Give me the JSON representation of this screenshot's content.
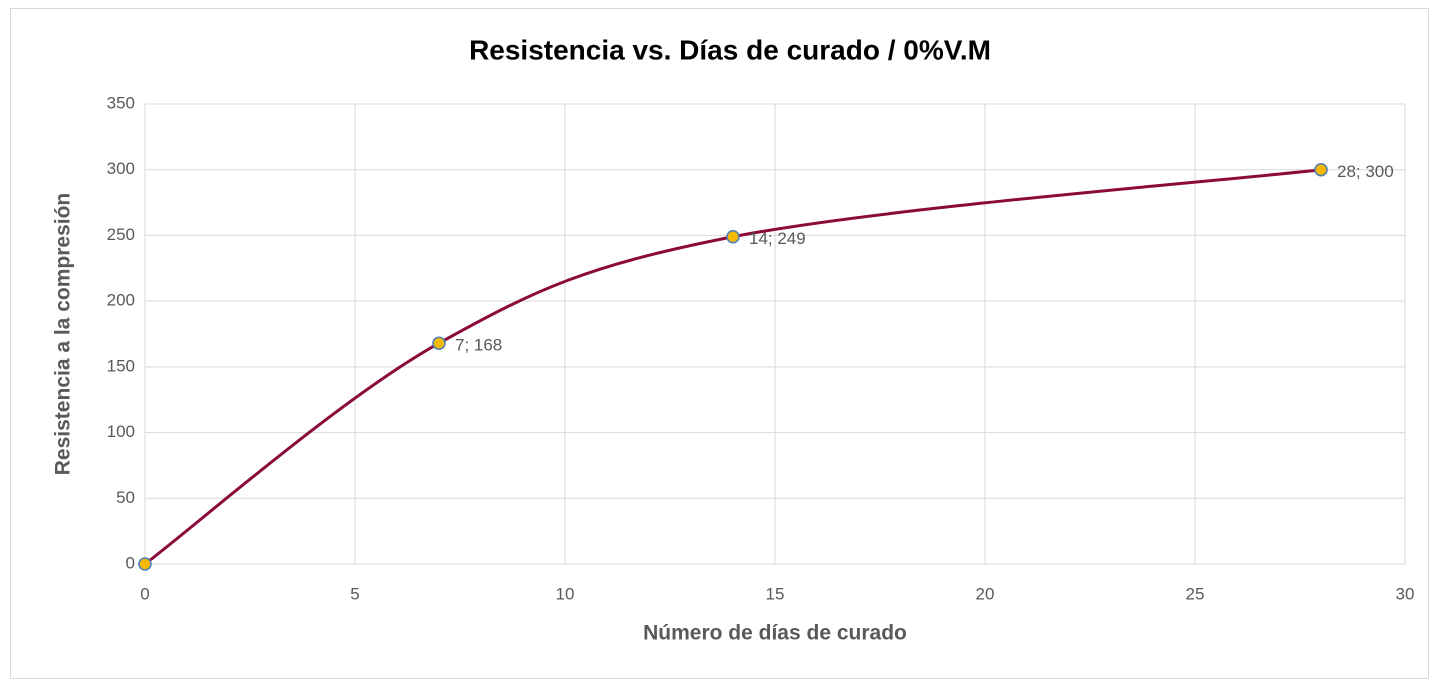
{
  "chart_data": {
    "type": "scatter",
    "title": "Resistencia vs. Días de curado / 0%V.M",
    "xlabel": "Número de días de curado",
    "ylabel": "Resistencia a la compresión",
    "x": [
      0,
      7,
      14,
      28
    ],
    "values": [
      0,
      168,
      249,
      300
    ],
    "value_labels": [
      null,
      "7; 168",
      "14; 249",
      "28; 300"
    ],
    "smooth": true,
    "line_color": "#8b0a3c",
    "marker_color": "#f5b800",
    "marker_edge_color": "#4a7ebb",
    "xlim": [
      0,
      30
    ],
    "xticks": [
      0,
      5,
      10,
      15,
      20,
      25,
      30
    ],
    "ylim": [
      0,
      350
    ],
    "yticks": [
      0,
      50,
      100,
      150,
      200,
      250,
      300,
      350
    ],
    "grid": true
  }
}
